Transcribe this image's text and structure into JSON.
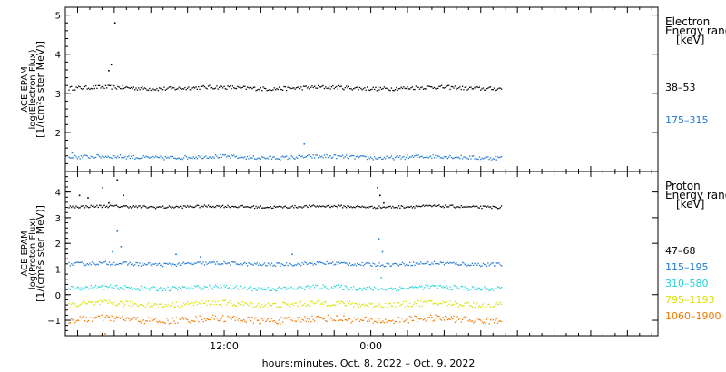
{
  "chart_data": [
    {
      "type": "scatter",
      "ylabel_lines": [
        "ACE EPAM",
        "log(Electron Flux)",
        "[1/(cm²s ster MeV)]"
      ],
      "ylim": [
        1.0,
        5.2
      ],
      "yticks": [
        2,
        3,
        4,
        5
      ],
      "legend_title": [
        "Electron",
        "Energy ranges",
        "[keV]"
      ],
      "series": [
        {
          "name": "38–53",
          "color": "#000000",
          "x_start": -0.75,
          "x_end": 34.75,
          "base": 3.15,
          "noise": 0.05,
          "points": [
            {
              "x": 2.5,
              "y": 3.6
            },
            {
              "x": 3.0,
              "y": 4.82
            },
            {
              "x": 2.7,
              "y": 3.75
            }
          ]
        },
        {
          "name": "175–315",
          "color": "#1f78d4",
          "x_start": -0.75,
          "x_end": 34.75,
          "base": 1.38,
          "noise": 0.05,
          "points": [
            {
              "x": 18.5,
              "y": 1.72
            },
            {
              "x": -0.5,
              "y": 1.5
            }
          ]
        }
      ]
    },
    {
      "type": "scatter",
      "ylabel_lines": [
        "ACE EPAM",
        "log(Proton Flux)",
        "[1/(cm²s ster MeV)]"
      ],
      "ylim": [
        -1.6,
        4.8
      ],
      "yticks": [
        -1,
        0,
        1,
        2,
        3,
        4
      ],
      "legend_title": [
        "Proton",
        "Energy ranges",
        "[keV]"
      ],
      "series": [
        {
          "name": "47–68",
          "color": "#000000",
          "x_start": -0.75,
          "x_end": 34.75,
          "base": 3.45,
          "noise": 0.05,
          "points": [
            {
              "x": 0.1,
              "y": 3.9
            },
            {
              "x": 0.8,
              "y": 3.8
            },
            {
              "x": 2.0,
              "y": 4.2
            },
            {
              "x": 2.5,
              "y": 3.6
            },
            {
              "x": 3.2,
              "y": 4.5
            },
            {
              "x": 3.7,
              "y": 3.9
            },
            {
              "x": 24.5,
              "y": 4.2
            },
            {
              "x": 24.7,
              "y": 3.9
            },
            {
              "x": 25.0,
              "y": 3.6
            }
          ]
        },
        {
          "name": "115–195",
          "color": "#1f78d4",
          "x_start": -0.75,
          "x_end": 34.75,
          "base": 1.22,
          "noise": 0.07,
          "points": [
            {
              "x": 3.2,
              "y": 2.5
            },
            {
              "x": 3.5,
              "y": 1.9
            },
            {
              "x": 2.8,
              "y": 1.7
            },
            {
              "x": 8.0,
              "y": 1.6
            },
            {
              "x": 10.0,
              "y": 1.5
            },
            {
              "x": 17.5,
              "y": 1.6
            },
            {
              "x": 24.6,
              "y": 2.2
            },
            {
              "x": 24.9,
              "y": 1.7
            }
          ]
        },
        {
          "name": "310–580",
          "color": "#22d3d8",
          "x_start": -0.75,
          "x_end": 34.75,
          "base": 0.28,
          "noise": 0.09,
          "points": [
            {
              "x": 24.5,
              "y": 1.0
            },
            {
              "x": 24.8,
              "y": 0.7
            }
          ]
        },
        {
          "name": "795–1193",
          "color": "#d8e200",
          "x_start": -0.75,
          "x_end": 34.75,
          "base": -0.35,
          "noise": 0.11,
          "points": []
        },
        {
          "name": "1060–1900",
          "color": "#f07800",
          "x_start": -0.75,
          "x_end": 34.75,
          "base": -0.95,
          "noise": 0.13,
          "points": [
            {
              "x": 2.2,
              "y": -1.5
            }
          ]
        }
      ]
    }
  ],
  "x_axis": {
    "range": [
      -1,
      47.5
    ],
    "tick_labels": [
      {
        "x": 12,
        "label": "12:00"
      },
      {
        "x": 24,
        "label": "0:00"
      }
    ],
    "minor_every": 3,
    "title": "hours:minutes, Oct.  8, 2022 – Oct.  9, 2022"
  }
}
